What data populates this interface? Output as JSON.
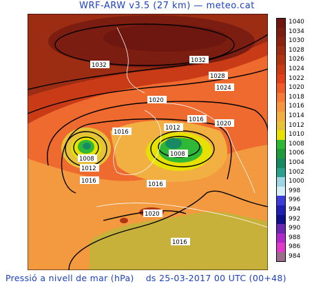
{
  "header": {
    "title": "WRF-ARW v3.5 (27 km) — meteo.cat"
  },
  "footer": {
    "variable": "Pressió a nivell de mar (hPa)",
    "run": "ds 25-03-2017 00 UTC (00+48)"
  },
  "legend": {
    "levels": [
      "1040",
      "1034",
      "1030",
      "1028",
      "1026",
      "1024",
      "1022",
      "1020",
      "1018",
      "1016",
      "1014",
      "1012",
      "1010",
      "1008",
      "1006",
      "1004",
      "1002",
      "1000",
      "998",
      "996",
      "994",
      "992",
      "990",
      "988",
      "986",
      "984"
    ],
    "colors": [
      "#6e1610",
      "#7b1d10",
      "#8a2410",
      "#9c2c12",
      "#b03414",
      "#c93a16",
      "#e0401a",
      "#ee5b26",
      "#f57a36",
      "#f5963e",
      "#f2b043",
      "#e6c13a",
      "#e6e100",
      "#2fb835",
      "#1f9a3c",
      "#178a64",
      "#2aa08f",
      "#9ed6e3",
      "#d6eef6",
      "#3d3dd6",
      "#2020b0",
      "#0f0f8a",
      "#6a28b0",
      "#b228c8",
      "#e03ac8",
      "#9a6e8a"
    ]
  },
  "isobar_labels": [
    {
      "text": "1032"
    },
    {
      "text": "1032"
    },
    {
      "text": "1028"
    },
    {
      "text": "1024"
    },
    {
      "text": "1020"
    },
    {
      "text": "1016"
    },
    {
      "text": "1012"
    },
    {
      "text": "1016"
    },
    {
      "text": "1020"
    },
    {
      "text": "1008"
    },
    {
      "text": "1012"
    },
    {
      "text": "1008"
    },
    {
      "text": "1016"
    },
    {
      "text": "1016"
    },
    {
      "text": "1020"
    },
    {
      "text": "1016"
    }
  ]
}
